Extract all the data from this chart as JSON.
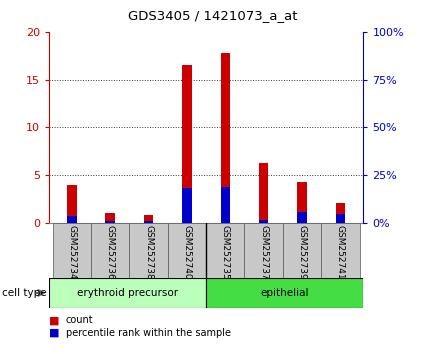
{
  "title": "GDS3405 / 1421073_a_at",
  "samples": [
    "GSM252734",
    "GSM252736",
    "GSM252738",
    "GSM252740",
    "GSM252735",
    "GSM252737",
    "GSM252739",
    "GSM252741"
  ],
  "count_values": [
    4.0,
    1.1,
    0.85,
    16.5,
    17.8,
    6.3,
    4.3,
    2.1
  ],
  "percentile_values": [
    3.5,
    0.8,
    0.8,
    18.5,
    19.0,
    1.5,
    6.0,
    4.5
  ],
  "groups": [
    {
      "label": "erythroid precursor",
      "start": 0,
      "end": 4,
      "color": "#bbffbb"
    },
    {
      "label": "epithelial",
      "start": 4,
      "end": 8,
      "color": "#44dd44"
    }
  ],
  "cell_type_label": "cell type",
  "left_ylim": [
    0,
    20
  ],
  "right_ylim": [
    0,
    100
  ],
  "left_yticks": [
    0,
    5,
    10,
    15,
    20
  ],
  "right_yticks": [
    0,
    25,
    50,
    75,
    100
  ],
  "right_yticklabels": [
    "0%",
    "25%",
    "50%",
    "75%",
    "100%"
  ],
  "left_tick_color": "#cc0000",
  "right_tick_color": "#0000cc",
  "bar_color_count": "#cc0000",
  "bar_color_pct": "#0000cc",
  "bar_width": 0.25,
  "grid_color": "#333333",
  "bg_color": "#ffffff",
  "sample_bg_color": "#c8c8c8",
  "legend_count_label": "count",
  "legend_pct_label": "percentile rank within the sample"
}
